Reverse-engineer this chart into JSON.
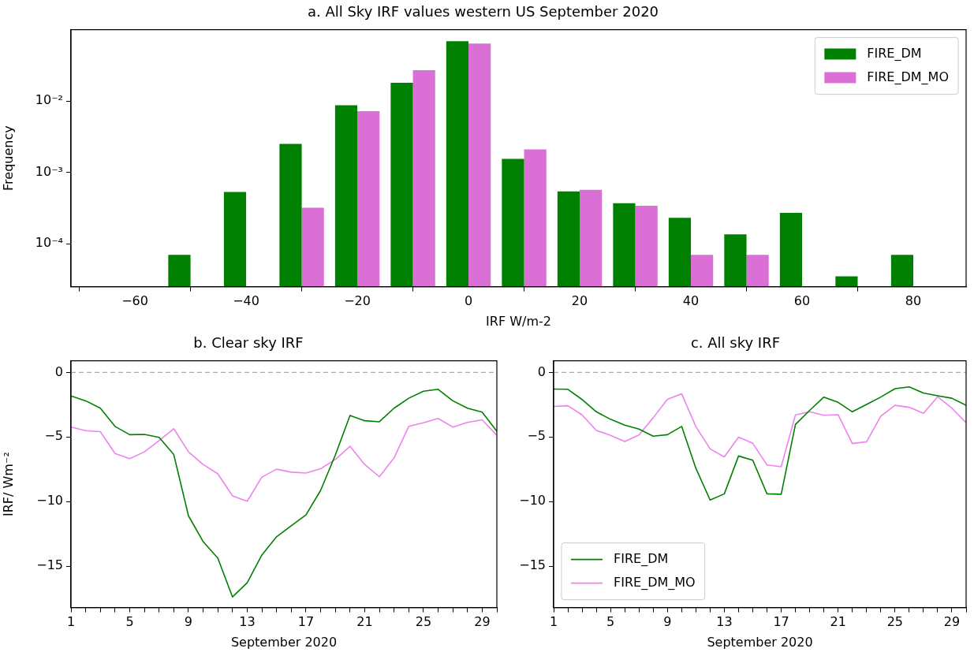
{
  "chart_data": [
    {
      "type": "histogram",
      "title": "a. All Sky IRF values western US September 2020",
      "xlabel": "IRF W/m-2",
      "ylabel": "Frequency",
      "log": "y",
      "legend": "top right",
      "bins": [
        -55,
        -45,
        -35,
        -25,
        -15,
        -5,
        5,
        15,
        25,
        35,
        45,
        55,
        65,
        75,
        85
      ],
      "series": [
        {
          "name": "FIRE_DM",
          "color": "#008000",
          "values": [
            7e-05,
            0.00053,
            0.0025,
            0.0087,
            0.018,
            0.069,
            0.00155,
            0.00054,
            0.00037,
            0.00023,
            0.000135,
            0.00027,
            3.5e-05,
            7e-05
          ]
        },
        {
          "name": "FIRE_DM_MO",
          "color": "#da70d6",
          "values": [
            null,
            null,
            0.00032,
            0.0072,
            0.027,
            0.064,
            0.0021,
            0.00057,
            0.00034,
            7e-05,
            7e-05,
            null,
            null,
            null
          ]
        }
      ],
      "xlim": [
        -71.5,
        89.5
      ],
      "xticks": [
        -60,
        -40,
        -20,
        0,
        20,
        40,
        60,
        80
      ],
      "ylim": [
        2.5e-05,
        0.1
      ],
      "yticks": [
        {
          "value": 0.0001,
          "label": "10⁻⁴"
        },
        {
          "value": 0.001,
          "label": "10⁻³"
        },
        {
          "value": 0.01,
          "label": "10⁻²"
        }
      ]
    },
    {
      "type": "line",
      "title": "b. Clear sky IRF",
      "xlabel": "September 2020",
      "ylabel": "IRF/ Wm⁻²",
      "x": [
        1,
        2,
        3,
        4,
        5,
        6,
        7,
        8,
        9,
        10,
        11,
        12,
        13,
        14,
        15,
        16,
        17,
        18,
        19,
        20,
        21,
        22,
        23,
        24,
        25,
        26,
        27,
        28,
        29,
        30
      ],
      "series": [
        {
          "color": "#008000",
          "values": [
            -1.82,
            -2.2,
            -2.77,
            -4.18,
            -4.82,
            -4.8,
            -5.03,
            -6.36,
            -11.1,
            -13.1,
            -14.38,
            -17.38,
            -16.28,
            -14.13,
            -12.72,
            -11.87,
            -11.03,
            -9.13,
            -6.4,
            -3.33,
            -3.74,
            -3.82,
            -2.77,
            -2.0,
            -1.46,
            -1.31,
            -2.2,
            -2.77,
            -3.08,
            -4.56
          ]
        },
        {
          "color": "#ee82ee",
          "values": [
            -4.23,
            -4.51,
            -4.59,
            -6.28,
            -6.67,
            -6.15,
            -5.28,
            -4.36,
            -6.15,
            -7.13,
            -7.85,
            -9.56,
            -9.97,
            -8.1,
            -7.49,
            -7.72,
            -7.79,
            -7.46,
            -6.74,
            -5.72,
            -7.13,
            -8.08,
            -6.62,
            -4.18,
            -3.9,
            -3.56,
            -4.23,
            -3.87,
            -3.67,
            -4.87
          ]
        }
      ],
      "xlim": [
        1,
        30
      ],
      "xticks": [
        1,
        {
          "value": 2,
          "label": null
        },
        {
          "value": 3,
          "label": null
        },
        {
          "value": 4,
          "label": null
        },
        5,
        {
          "value": 6,
          "label": null
        },
        {
          "value": 7,
          "label": null
        },
        {
          "value": 8,
          "label": null
        },
        9,
        {
          "value": 10,
          "label": null
        },
        {
          "value": 11,
          "label": null
        },
        {
          "value": 12,
          "label": null
        },
        13,
        {
          "value": 14,
          "label": null
        },
        {
          "value": 15,
          "label": null
        },
        {
          "value": 16,
          "label": null
        },
        17,
        {
          "value": 18,
          "label": null
        },
        {
          "value": 19,
          "label": null
        },
        {
          "value": 20,
          "label": null
        },
        21,
        {
          "value": 22,
          "label": null
        },
        {
          "value": 23,
          "label": null
        },
        {
          "value": 24,
          "label": null
        },
        25,
        {
          "value": 26,
          "label": null
        },
        {
          "value": 27,
          "label": null
        },
        {
          "value": 28,
          "label": null
        },
        29,
        {
          "value": 30,
          "label": null
        }
      ],
      "ylim": [
        -18.2,
        0.9
      ],
      "yticks": [
        -15,
        -10,
        -5,
        0
      ],
      "ref_lines": [
        {
          "axis": "y",
          "value": 0,
          "color": "#aaaaaa",
          "line_style": "dashed"
        }
      ]
    },
    {
      "type": "line",
      "title": "c. All sky IRF",
      "xlabel": "September 2020",
      "legend": "bottom left",
      "x": [
        1,
        2,
        3,
        4,
        5,
        6,
        7,
        8,
        9,
        10,
        11,
        12,
        13,
        14,
        15,
        16,
        17,
        18,
        19,
        20,
        21,
        22,
        23,
        24,
        25,
        26,
        27,
        28,
        29,
        30
      ],
      "series": [
        {
          "name": "FIRE_DM",
          "color": "#008000",
          "values": [
            -1.29,
            -1.31,
            -2.1,
            -3.05,
            -3.63,
            -4.08,
            -4.39,
            -4.94,
            -4.82,
            -4.18,
            -7.42,
            -9.88,
            -9.4,
            -6.47,
            -6.8,
            -9.4,
            -9.43,
            -4.03,
            -2.94,
            -1.91,
            -2.32,
            -3.05,
            -2.48,
            -1.91,
            -1.26,
            -1.12,
            -1.6,
            -1.81,
            -2.0,
            -2.55
          ]
        },
        {
          "name": "FIRE_DM_MO",
          "color": "#ee82ee",
          "values": [
            -2.63,
            -2.58,
            -3.29,
            -4.49,
            -4.87,
            -5.35,
            -4.84,
            -3.51,
            -2.08,
            -1.65,
            -4.2,
            -5.92,
            -6.54,
            -5.01,
            -5.49,
            -7.16,
            -7.3,
            -3.29,
            -3.05,
            -3.32,
            -3.27,
            -5.51,
            -5.37,
            -3.39,
            -2.55,
            -2.7,
            -3.17,
            -1.89,
            -2.77,
            -3.9
          ]
        }
      ],
      "xlim": [
        1,
        30
      ],
      "xticks": [
        1,
        {
          "value": 2,
          "label": null
        },
        {
          "value": 3,
          "label": null
        },
        {
          "value": 4,
          "label": null
        },
        5,
        {
          "value": 6,
          "label": null
        },
        {
          "value": 7,
          "label": null
        },
        {
          "value": 8,
          "label": null
        },
        9,
        {
          "value": 10,
          "label": null
        },
        {
          "value": 11,
          "label": null
        },
        {
          "value": 12,
          "label": null
        },
        13,
        {
          "value": 14,
          "label": null
        },
        {
          "value": 15,
          "label": null
        },
        {
          "value": 16,
          "label": null
        },
        17,
        {
          "value": 18,
          "label": null
        },
        {
          "value": 19,
          "label": null
        },
        {
          "value": 20,
          "label": null
        },
        21,
        {
          "value": 22,
          "label": null
        },
        {
          "value": 23,
          "label": null
        },
        {
          "value": 24,
          "label": null
        },
        25,
        {
          "value": 26,
          "label": null
        },
        {
          "value": 27,
          "label": null
        },
        {
          "value": 28,
          "label": null
        },
        29,
        {
          "value": 30,
          "label": null
        }
      ],
      "ylim": [
        -18.2,
        0.9
      ],
      "yticks": [
        -15,
        -10,
        -5,
        0
      ],
      "ref_lines": [
        {
          "axis": "y",
          "value": 0,
          "color": "#aaaaaa",
          "line_style": "dashed"
        }
      ]
    }
  ]
}
